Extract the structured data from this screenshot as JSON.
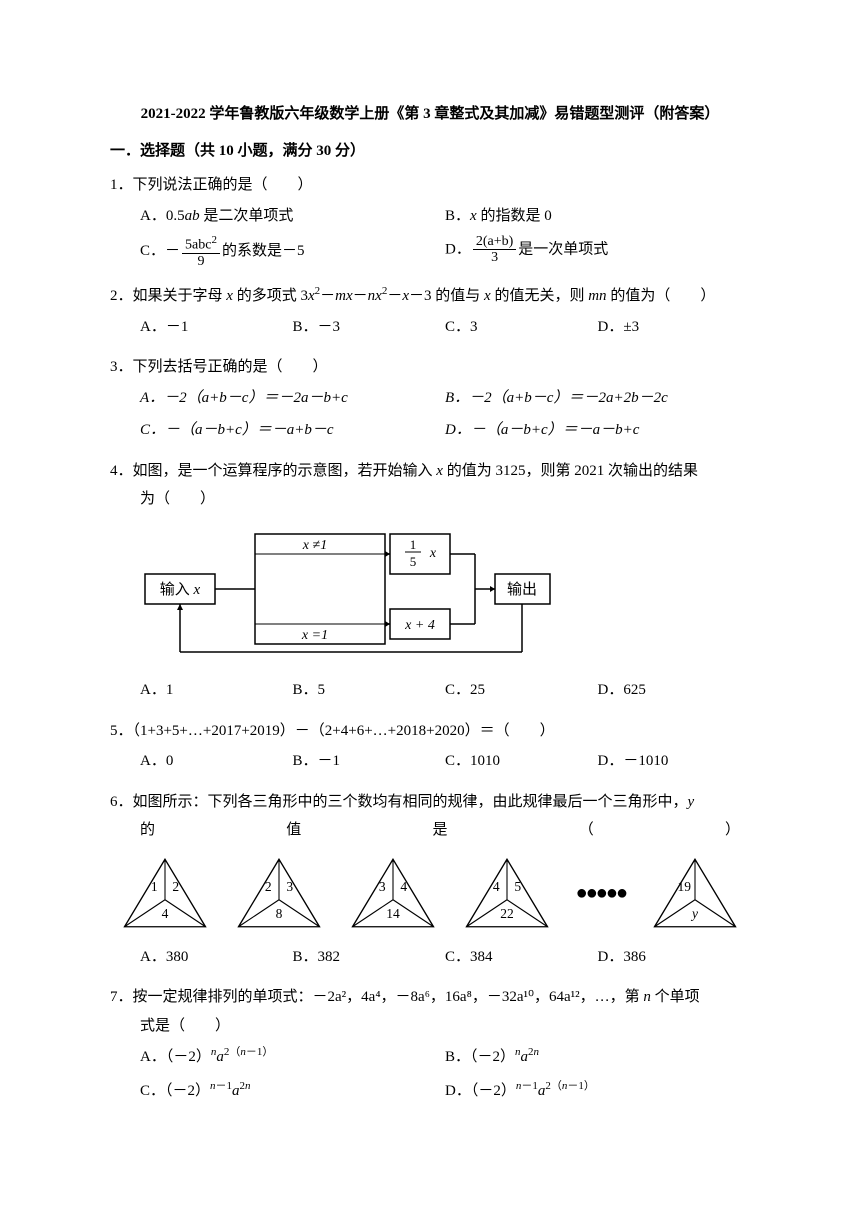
{
  "title": "2021-2022 学年鲁教版六年级数学上册《第 3 章整式及其加减》易错题型测评（附答案）",
  "section1": "一．选择题（共 10 小题，满分 30 分）",
  "q1": {
    "text": "1．下列说法正确的是（　　）",
    "a_prefix": "A．0.5",
    "a_mid": "ab",
    "a_suffix": " 是二次单项式",
    "b_prefix": "B．",
    "b_mid": "x",
    "b_suffix": " 的指数是 0",
    "c_prefix": "C．－",
    "c_num": "5abc",
    "c_den": "9",
    "c_suffix": "的系数是－5",
    "d_prefix": "D．",
    "d_num": "2(a+b)",
    "d_den": "3",
    "d_suffix": "是一次单项式"
  },
  "q2": {
    "text_1": "2．如果关于字母 ",
    "text_x": "x",
    "text_2": " 的多项式 3",
    "text_3": "－",
    "text_mx": "mx",
    "text_4": "－",
    "text_nx": "nx",
    "text_5": "－",
    "text_6": "－3 的值与 ",
    "text_7": " 的值无关，则 ",
    "text_mn": "mn",
    "text_8": " 的值为（　　）",
    "a": "A．－1",
    "b": "B．－3",
    "c": "C．3",
    "d": "D．±3"
  },
  "q3": {
    "text": "3．下列去括号正确的是（　　）",
    "a": "A．－2（a+b－c）＝－2a－b+c",
    "b": "B．－2（a+b－c）＝－2a+2b－2c",
    "c": "C．－（a－b+c）＝－a+b－c",
    "d": "D．－（a－b+c）＝－a－b+c"
  },
  "q4": {
    "text_1": "4．如图，是一个运算程序的示意图，若开始输入 ",
    "text_x": "x",
    "text_2": " 的值为 3125，则第 2021 次输出的结果",
    "text_3": "为（　　）",
    "a": "A．1",
    "b": "B．5",
    "c": "C．25",
    "d": "D．625",
    "flow": {
      "input": "输入 x",
      "cond_top": "x ≠1",
      "cond_bot": "x =1",
      "box_top_num": "1",
      "box_top_den": "5",
      "box_top_x": "x",
      "box_bot": "x + 4",
      "output": "输出"
    }
  },
  "q5": {
    "text": "5．（1+3+5+…+2017+2019）－（2+4+6+…+2018+2020）＝（　　）",
    "a": "A．0",
    "b": "B．－1",
    "c": "C．1010",
    "d": "D．－1010"
  },
  "q6": {
    "text_1": "6．如图所示：下列各三角形中的三个数均有相同的规律，由此规律最后一个三角形中，",
    "text_y": "y",
    "spread": [
      "的",
      "值",
      "是",
      "（",
      "）"
    ],
    "a": "A．380",
    "b": "B．382",
    "c": "C．384",
    "d": "D．386",
    "triangles": [
      {
        "l": "1",
        "r": "2",
        "b": "4"
      },
      {
        "l": "2",
        "r": "3",
        "b": "8"
      },
      {
        "l": "3",
        "r": "4",
        "b": "14"
      },
      {
        "l": "4",
        "r": "5",
        "b": "22"
      },
      {
        "l": "19",
        "r": "",
        "b": "y",
        "last": true
      }
    ]
  },
  "q7": {
    "text_1": "7．按一定规律排列的单项式：－2a²，4a⁴，－8a⁶，16a⁸，－32a¹⁰，64a¹²，…，第 ",
    "text_n": "n",
    "text_2": " 个单项",
    "text_3": "式是（　　）",
    "a_pre": "A．（－2）",
    "b_pre": "B．（－2）",
    "c_pre": "C．（－2）",
    "d_pre": "D．（－2）"
  },
  "colors": {
    "text": "#000000",
    "bg": "#ffffff",
    "line": "#000000"
  }
}
